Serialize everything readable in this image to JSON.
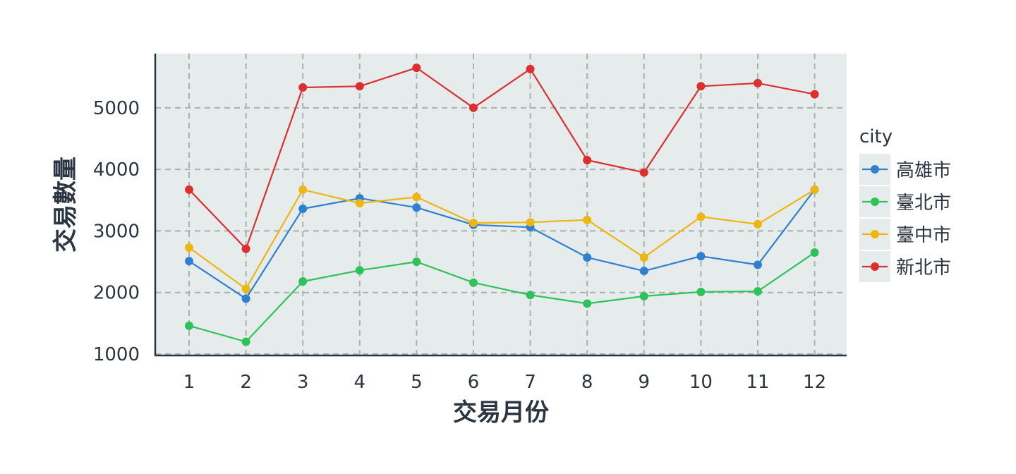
{
  "chart_data": {
    "type": "line",
    "xlabel": "交易月份",
    "ylabel": "交易數量",
    "x": [
      1,
      2,
      3,
      4,
      5,
      6,
      7,
      8,
      9,
      10,
      11,
      12
    ],
    "x_tick_labels": [
      "1",
      "2",
      "3",
      "4",
      "5",
      "6",
      "7",
      "8",
      "9",
      "10",
      "11",
      "12"
    ],
    "ylim": [
      1000,
      5880
    ],
    "y_ticks": [
      1000,
      2000,
      3000,
      4000,
      5000
    ],
    "y_tick_labels": [
      "1000",
      "2000",
      "3000",
      "4000",
      "5000"
    ],
    "grid": true,
    "legend": {
      "title": "city",
      "position": "right"
    },
    "series": [
      {
        "name": "高雄市",
        "color": "#2f80cf",
        "values": [
          2510,
          1900,
          3360,
          3530,
          3380,
          3100,
          3060,
          2570,
          2350,
          2590,
          2450,
          3670
        ]
      },
      {
        "name": "臺北市",
        "color": "#2fc25b",
        "values": [
          1460,
          1200,
          2180,
          2360,
          2500,
          2160,
          1960,
          1820,
          1940,
          2010,
          2020,
          2650
        ]
      },
      {
        "name": "臺中市",
        "color": "#eeb612",
        "values": [
          2730,
          2060,
          3670,
          3450,
          3550,
          3130,
          3140,
          3180,
          2570,
          3230,
          3110,
          3670
        ]
      },
      {
        "name": "新北市",
        "color": "#db3030",
        "values": [
          3670,
          2710,
          5330,
          5350,
          5650,
          5000,
          5630,
          4150,
          3950,
          5350,
          5400,
          5220
        ]
      }
    ]
  }
}
